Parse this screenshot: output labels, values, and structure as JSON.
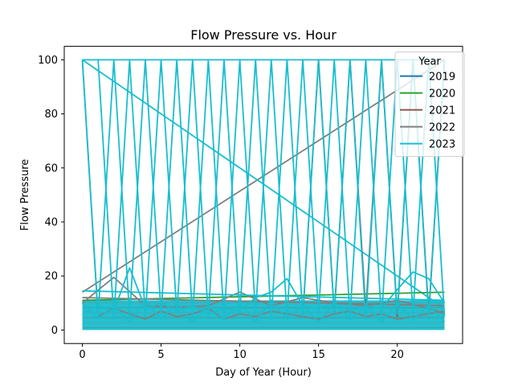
{
  "chart_data": {
    "type": "line",
    "title": "Flow Pressure vs. Hour",
    "xlabel": "Day of Year (Hour)",
    "ylabel": "Flow Pressure",
    "xlim": [
      -1.15,
      24.15
    ],
    "ylim": [
      -5,
      105
    ],
    "x_ticks": [
      0,
      5,
      10,
      15,
      20
    ],
    "y_ticks": [
      0,
      20,
      40,
      60,
      80,
      100
    ],
    "grid": false,
    "legend": {
      "title": "Year",
      "placement": "upper-right"
    },
    "series": [
      {
        "name": "2019",
        "color": "#1f77b4"
      },
      {
        "name": "2020",
        "color": "#2ca02c"
      },
      {
        "name": "2021",
        "color": "#8c564b"
      },
      {
        "name": "2022",
        "color": "#7f7f7f"
      },
      {
        "name": "2023",
        "color": "#17becf"
      }
    ],
    "visible_traces": [
      {
        "series": "2022",
        "x": [
          0,
          23
        ],
        "y": [
          14,
          100
        ]
      },
      {
        "series": "2023",
        "x": [
          0,
          23
        ],
        "y": [
          100,
          8
        ]
      },
      {
        "series": "2022",
        "x": [
          0,
          1,
          2,
          3,
          4,
          5,
          6,
          7,
          8,
          9,
          10,
          11,
          12,
          13,
          14,
          15,
          16,
          17,
          18,
          19,
          20,
          21,
          22,
          23
        ],
        "y": [
          100,
          5,
          8,
          6,
          4,
          7,
          5,
          6,
          8,
          4,
          6,
          5,
          7,
          6,
          5,
          4,
          6,
          7,
          5,
          6,
          4,
          5,
          6,
          7
        ]
      },
      {
        "series": "2021",
        "x": [
          14,
          15,
          16,
          17,
          18,
          19,
          20,
          21,
          22,
          23
        ],
        "y": [
          5,
          100,
          6,
          100,
          7,
          100,
          5,
          100,
          6,
          100
        ]
      },
      {
        "series": "2020",
        "x": [
          0,
          23
        ],
        "y": [
          11,
          14
        ]
      },
      {
        "series": "2022",
        "x": [
          0,
          23
        ],
        "y": [
          12,
          9
        ]
      },
      {
        "series": "2022",
        "x": [
          0,
          2,
          4,
          6,
          8,
          10,
          12,
          14,
          16,
          18,
          20,
          22,
          23
        ],
        "y": [
          10,
          19.5,
          9,
          8.5,
          9,
          14,
          9,
          12,
          10,
          9,
          11,
          8,
          6
        ]
      },
      {
        "series": "2023",
        "x": [
          0,
          23
        ],
        "y": [
          14.5,
          11
        ]
      },
      {
        "series": "2023",
        "x": [
          0,
          1,
          2,
          3,
          4,
          5,
          6,
          7,
          8,
          9,
          10,
          11,
          12,
          13,
          14,
          15,
          16,
          17,
          18,
          19,
          20,
          21,
          22,
          23
        ],
        "y": [
          100,
          5,
          100,
          5,
          100,
          6,
          100,
          5,
          100,
          4,
          100,
          6,
          100,
          5,
          100,
          6,
          100,
          5,
          100,
          4,
          100,
          6,
          100,
          5
        ]
      },
      {
        "series": "2023",
        "x": [
          1,
          2,
          3,
          4,
          5,
          6,
          7,
          8,
          9,
          10,
          11,
          12,
          13,
          14,
          15,
          16,
          17,
          18,
          19,
          20,
          21,
          22,
          23
        ],
        "y": [
          100,
          4,
          100,
          5,
          100,
          6,
          100,
          5,
          100,
          6,
          100,
          4,
          100,
          5,
          100,
          6,
          100,
          4,
          100,
          6,
          100,
          5,
          100
        ]
      },
      {
        "series": "2023",
        "x": [
          0,
          23
        ],
        "y": [
          100,
          100
        ]
      },
      {
        "series": "2023",
        "x": [
          0,
          1,
          2,
          3,
          4,
          5,
          6,
          7,
          8,
          9,
          10,
          11,
          12,
          13,
          14,
          15,
          16,
          17,
          18,
          19,
          20,
          21,
          22,
          23
        ],
        "y": [
          6,
          9,
          7,
          23,
          8,
          10,
          7,
          9,
          6,
          8,
          7,
          12,
          14,
          19,
          9,
          8,
          10,
          7,
          9,
          8,
          15,
          21.5,
          19,
          10
        ]
      },
      {
        "series": "2023",
        "x": [
          0,
          1,
          2,
          3,
          4,
          5,
          6,
          7,
          8,
          9,
          10,
          11,
          12,
          13,
          14,
          15,
          16,
          17,
          18,
          19,
          20,
          21,
          22,
          23
        ],
        "y": [
          10,
          4,
          9,
          3,
          11,
          4,
          10,
          3,
          9,
          4,
          10,
          3,
          11,
          4,
          9,
          3,
          10,
          4,
          9,
          3,
          10,
          4,
          9,
          3
        ]
      }
    ],
    "dense_band": {
      "series": "2023",
      "x_range": [
        0,
        23
      ],
      "y_range": [
        0,
        11
      ]
    }
  }
}
